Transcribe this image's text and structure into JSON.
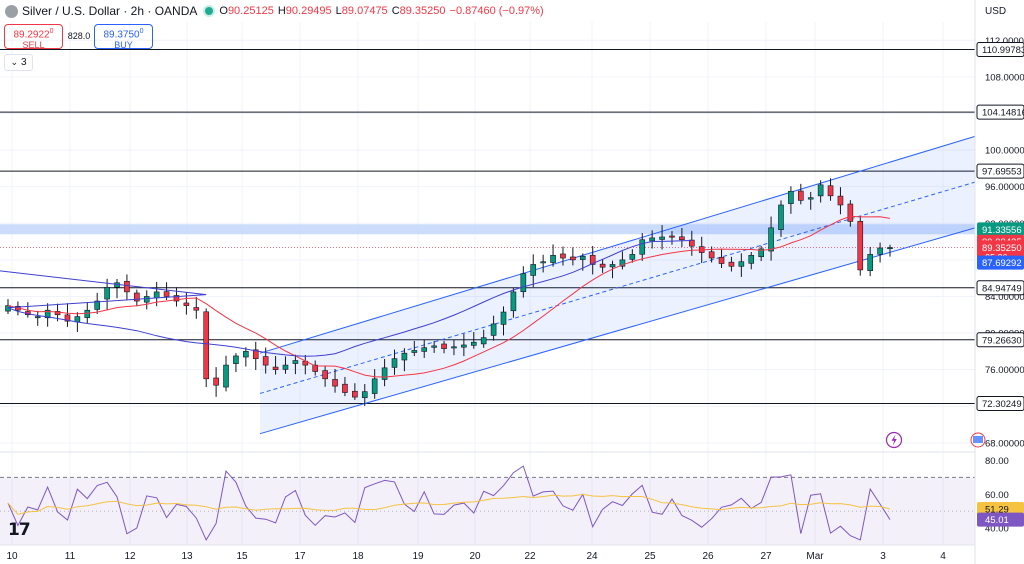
{
  "header": {
    "title": "Silver / U.S. Dollar · 2h · OANDA",
    "open_key": "O",
    "open": "90.25125",
    "high_key": "H",
    "high": "90.29495",
    "low_key": "L",
    "low": "89.07475",
    "close_key": "C",
    "close": "89.35250",
    "change": "−0.87460 (−0.97%)"
  },
  "trade": {
    "sell_price": "89.2922",
    "sell_sup": "0",
    "sell_label": "SELL",
    "spread": "828.0",
    "buy_price": "89.3750",
    "buy_sup": "0",
    "buy_label": "BUY"
  },
  "layers": {
    "count": "3"
  },
  "axis": {
    "currency": "USD"
  },
  "colors": {
    "up": "#089981",
    "down": "#f23645",
    "ma_fast": "#f23645",
    "ma_slow": "#3f3fd0",
    "channel": "#2962ff",
    "rsi": "#7e57c2",
    "rsi_ma": "#f5c242"
  },
  "icons": {
    "lightning": "lightning-icon",
    "flag": "flag-icon",
    "logo": "tradingview-logo-icon"
  },
  "chart_data": [
    {
      "type": "candlestick",
      "title": "Silver / U.S. Dollar · 2h · OANDA",
      "ylim": [
        67,
        114
      ],
      "y_ticks": [
        68,
        72,
        76,
        80,
        84,
        88,
        92,
        96,
        100,
        104,
        108,
        112
      ],
      "y_tick_labels": [
        "68.00000",
        "72.00000",
        "76.00000",
        "80.00000",
        "84.00000",
        "88.00000",
        "92.00000",
        "96.00000",
        "100.00000",
        "104.00000",
        "108.00000",
        "112.00000"
      ],
      "x_tick_labels": [
        "10",
        "11",
        "12",
        "13",
        "15",
        "17",
        "18",
        "19",
        "20",
        "22",
        "24",
        "25",
        "26",
        "27",
        "Mar",
        "3",
        "4"
      ],
      "close_series": [
        83,
        82.5,
        82,
        81.8,
        82.5,
        82,
        81.3,
        81.8,
        82.5,
        83.5,
        85,
        85.5,
        84.5,
        83.5,
        84,
        84.5,
        84,
        83.5,
        83,
        82.5,
        75,
        74.3,
        76.5,
        77.5,
        78,
        77.2,
        76.5,
        76,
        76.5,
        77,
        76.5,
        75.8,
        75,
        74.2,
        73.5,
        73,
        73.6,
        75,
        76.2,
        77.2,
        77.8,
        78.1,
        78.4,
        78.6,
        78.3,
        78.5,
        78.7,
        79,
        79.5,
        81,
        82.3,
        84.5,
        86.5,
        87.5,
        87.8,
        88.5,
        88.2,
        88,
        88.4,
        87.5,
        87.2,
        87.5,
        88,
        88.6,
        90.2,
        90.4,
        90.5,
        90.6,
        90.2,
        89.5,
        88.8,
        88.2,
        87.6,
        87.3,
        87.8,
        88.5,
        89.2,
        91.5,
        94,
        95.5,
        94.5,
        94.8,
        96.2,
        95,
        94,
        92.2,
        86.9,
        88.6,
        89.3,
        89.35
      ],
      "horizontal_levels": [
        {
          "value": 110.99783,
          "label": "110.99783"
        },
        {
          "value": 104.14816,
          "label": "104.14816"
        },
        {
          "value": 97.69553,
          "label": "97.69553"
        },
        {
          "value": 84.94749,
          "label": "84.94749"
        },
        {
          "value": 79.2663,
          "label": "79.26630"
        },
        {
          "value": 72.30249,
          "label": "72.30249"
        }
      ],
      "support_zone": [
        90.8,
        91.9
      ],
      "price_tags": [
        {
          "value": 91.33556,
          "label": "91.33556",
          "color": "#089981"
        },
        {
          "value": 89.98425,
          "label": "89.98425",
          "color": "#f23645"
        },
        {
          "value": 89.3525,
          "label": "89.35250",
          "color": "#f23645",
          "sub": "25:26"
        },
        {
          "value": 87.69292,
          "label": "87.69292",
          "color": "#2962ff"
        }
      ],
      "channel": {
        "lower": [
          69.0,
          91.5
        ],
        "upper": [
          77.8,
          101.5
        ],
        "mid": [
          73.4,
          96.5
        ]
      }
    },
    {
      "type": "line",
      "indicator": "RSI",
      "ylim": [
        30,
        85
      ],
      "y_tick_labels": [
        "80.00",
        "60.00",
        "40.00"
      ],
      "y_ticks": [
        80,
        60,
        40
      ],
      "bands": [
        70,
        30
      ],
      "mid_line": 50,
      "rsi_value_label": "45.01",
      "rsi_ma_value_label": "51.29",
      "rsi_value": 45.01,
      "rsi_ma_value": 51.29
    }
  ]
}
